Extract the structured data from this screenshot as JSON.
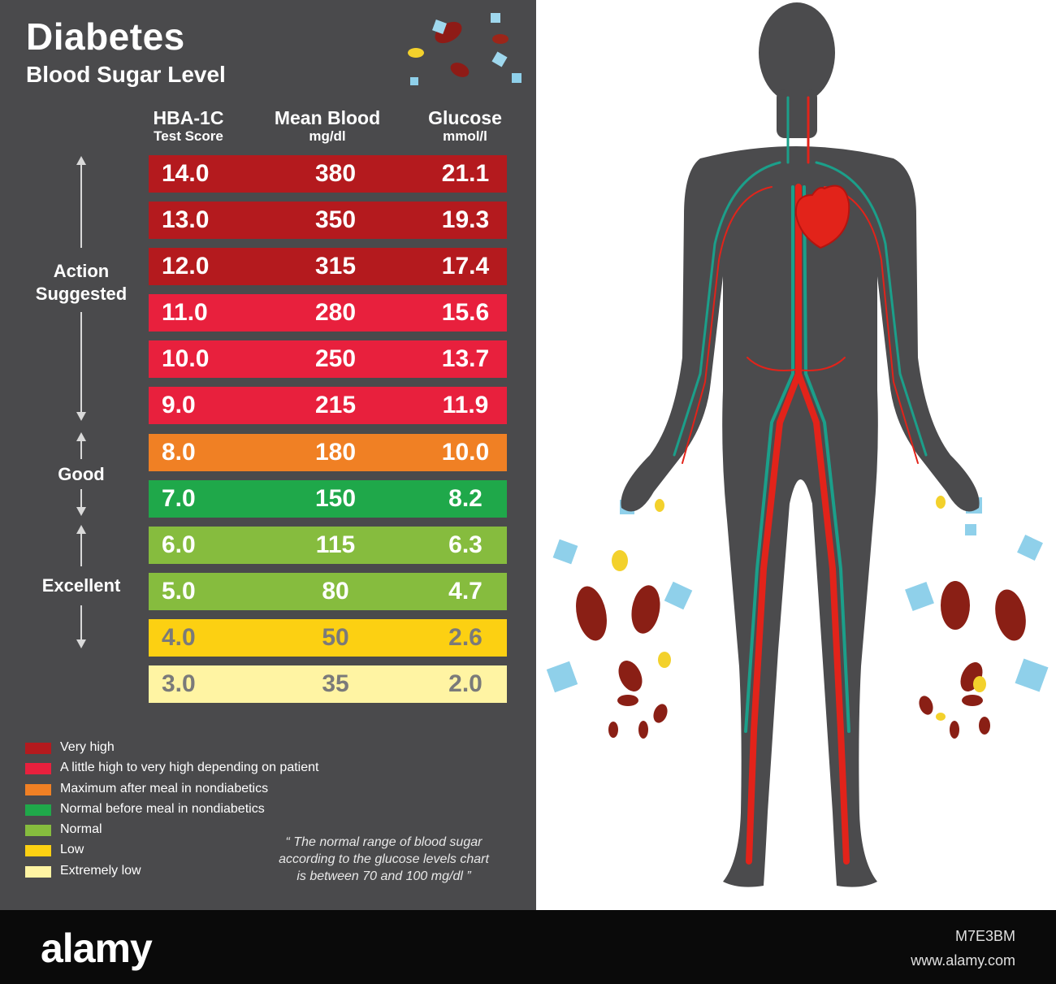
{
  "header": {
    "title": "Diabetes",
    "subtitle": "Blood Sugar Level"
  },
  "columns": [
    {
      "title": "HBA-1C",
      "unit": "Test Score"
    },
    {
      "title": "Mean Blood",
      "unit": "mg/dl"
    },
    {
      "title": "Glucose",
      "unit": "mmol/l"
    }
  ],
  "rows": [
    {
      "hba1c": "14.0",
      "mg_dl": "380",
      "mmol_l": "21.1",
      "color": "#b41a1e",
      "text_color": "#ffffff"
    },
    {
      "hba1c": "13.0",
      "mg_dl": "350",
      "mmol_l": "19.3",
      "color": "#b41a1e",
      "text_color": "#ffffff"
    },
    {
      "hba1c": "12.0",
      "mg_dl": "315",
      "mmol_l": "17.4",
      "color": "#b41a1e",
      "text_color": "#ffffff"
    },
    {
      "hba1c": "11.0",
      "mg_dl": "280",
      "mmol_l": "15.6",
      "color": "#e8203d",
      "text_color": "#ffffff"
    },
    {
      "hba1c": "10.0",
      "mg_dl": "250",
      "mmol_l": "13.7",
      "color": "#e8203d",
      "text_color": "#ffffff"
    },
    {
      "hba1c": "9.0",
      "mg_dl": "215",
      "mmol_l": "11.9",
      "color": "#e8203d",
      "text_color": "#ffffff"
    },
    {
      "hba1c": "8.0",
      "mg_dl": "180",
      "mmol_l": "10.0",
      "color": "#f08024",
      "text_color": "#ffffff"
    },
    {
      "hba1c": "7.0",
      "mg_dl": "150",
      "mmol_l": "8.2",
      "color": "#1fa84a",
      "text_color": "#ffffff"
    },
    {
      "hba1c": "6.0",
      "mg_dl": "115",
      "mmol_l": "6.3",
      "color": "#86bc3e",
      "text_color": "#ffffff"
    },
    {
      "hba1c": "5.0",
      "mg_dl": "80",
      "mmol_l": "4.7",
      "color": "#86bc3e",
      "text_color": "#ffffff"
    },
    {
      "hba1c": "4.0",
      "mg_dl": "50",
      "mmol_l": "2.6",
      "color": "#fcd012",
      "text_color": "#7a7a7a"
    },
    {
      "hba1c": "3.0",
      "mg_dl": "35",
      "mmol_l": "2.0",
      "color": "#fff4a3",
      "text_color": "#7a7a7a"
    }
  ],
  "ranges": [
    {
      "label": "Action Suggested"
    },
    {
      "label": "Good"
    },
    {
      "label": "Excellent"
    }
  ],
  "legend": [
    {
      "label": "Very high",
      "color": "#b41a1e"
    },
    {
      "label": "A little high to very high depending on patient",
      "color": "#e8203d"
    },
    {
      "label": "Maximum after meal in nondiabetics",
      "color": "#f08024"
    },
    {
      "label": "Normal before meal in nondiabetics",
      "color": "#1fa84a"
    },
    {
      "label": "Normal",
      "color": "#86bc3e"
    },
    {
      "label": "Low",
      "color": "#fcd012"
    },
    {
      "label": "Extremely low",
      "color": "#fff4a3"
    }
  ],
  "quote": {
    "line1": "“ The normal range of blood sugar",
    "line2": "according to the glucose levels chart",
    "line3": "is between 70 and 100 mg/dl ”"
  },
  "footer": {
    "logo": "alamy",
    "image_id": "M7E3BM",
    "url": "www.alamy.com"
  },
  "colors": {
    "panel": "#4a4a4c",
    "body_silhouette": "#4b4b4d",
    "artery": "#e2231a",
    "vein": "#1b9f8a"
  }
}
